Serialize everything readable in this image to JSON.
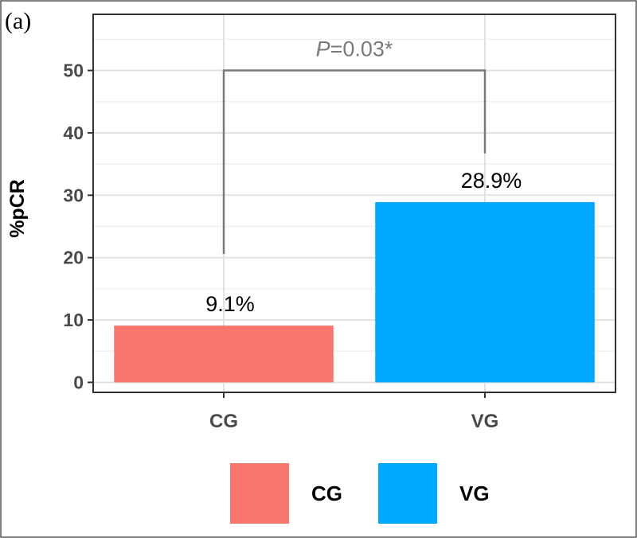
{
  "panel_label": "(a)",
  "chart_data": {
    "type": "bar",
    "categories": [
      "CG",
      "VG"
    ],
    "values": [
      9.1,
      28.9
    ],
    "data_labels": [
      "9.1%",
      "28.9%"
    ],
    "ylabel": "%pCR",
    "xlabel": "",
    "ylim": [
      -1.6,
      59
    ],
    "yticks": [
      0,
      10,
      20,
      30,
      40,
      50
    ],
    "grid": true,
    "colors": [
      "#f8766d",
      "#00a9ff"
    ],
    "legend": {
      "position": "bottom",
      "entries": [
        "CG",
        "VG"
      ]
    },
    "annotation": {
      "p_symbol": "P",
      "p_value": "=0.03*",
      "bracket_from": "CG",
      "bracket_to": "VG",
      "bracket_y": 50
    }
  }
}
